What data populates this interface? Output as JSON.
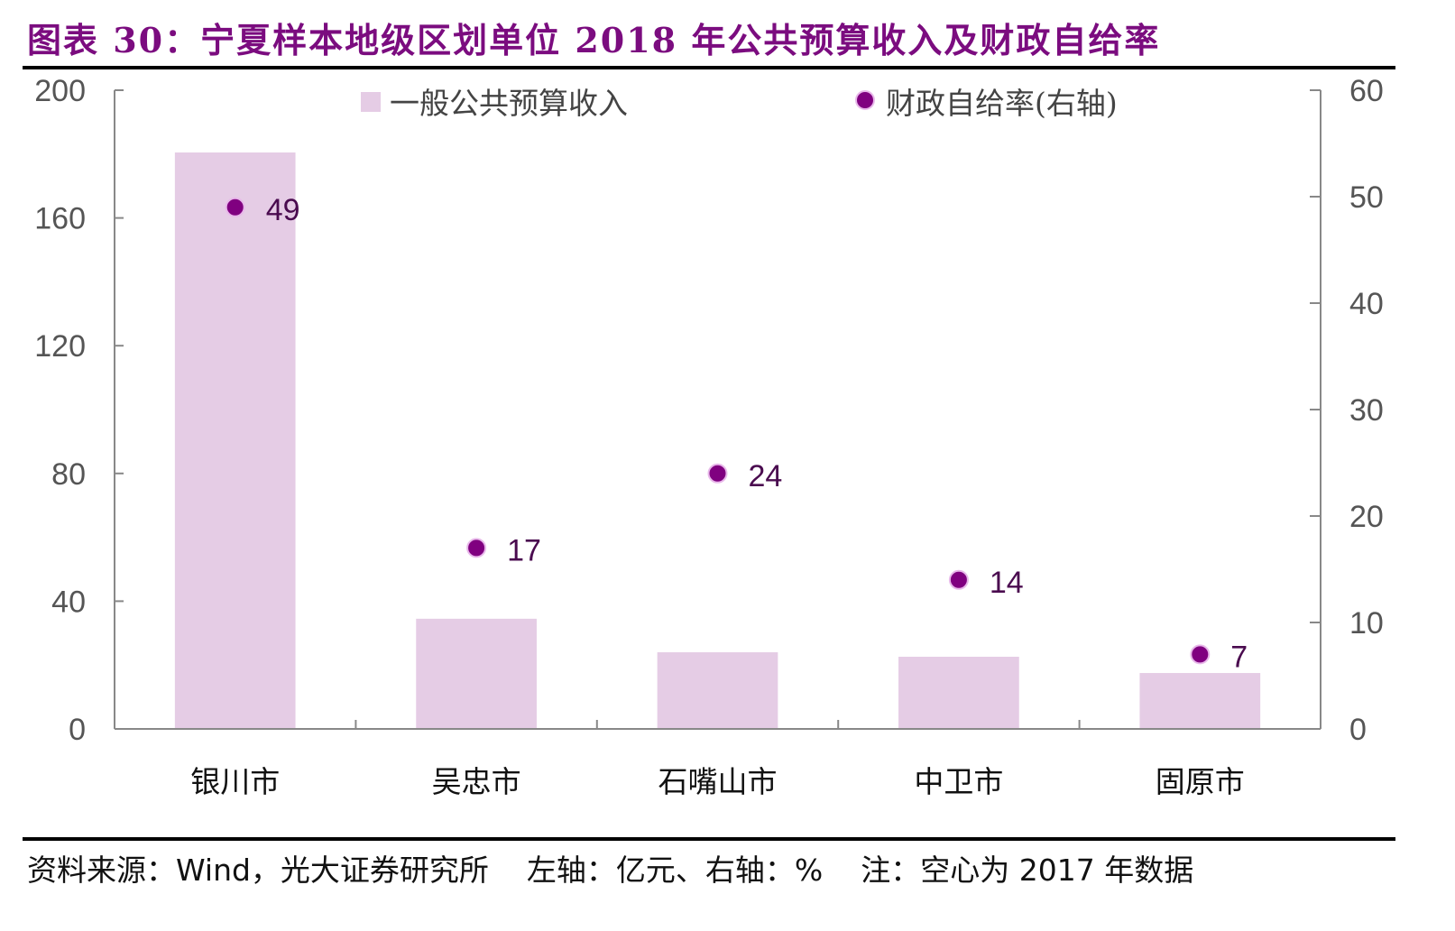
{
  "header": {
    "title": "图表 30：宁夏样本地级区划单位 2018 年公共预算收入及财政自给率"
  },
  "footer": {
    "source": "资料来源：Wind，光大证券研究所",
    "axis_note": "左轴：亿元、右轴：%",
    "note": "注：空心为 2017 年数据"
  },
  "colors": {
    "title": "#7b0c7f",
    "bar": "#e5cce5",
    "dot": "#800080",
    "dot_halo": "#e8b8ea",
    "axis": "#888888",
    "data_label": "#4a0b4f"
  },
  "chart_data": {
    "type": "bar",
    "title": "宁夏样本地级区划单位 2018 年公共预算收入及财政自给率",
    "categories": [
      "银川市",
      "吴忠市",
      "石嘴山市",
      "中卫市",
      "固原市"
    ],
    "series": [
      {
        "name": "一般公共预算收入",
        "type": "bar",
        "axis": "left",
        "values": [
          180.5,
          34.5,
          24.0,
          22.6,
          17.5
        ]
      },
      {
        "name": "财政自给率(右轴)",
        "type": "scatter",
        "axis": "right",
        "values": [
          49,
          17,
          24,
          14,
          7
        ],
        "data_labels": [
          "49",
          "17",
          "24",
          "14",
          "7"
        ]
      }
    ],
    "left_axis": {
      "label": "亿元",
      "ylim": [
        0,
        200
      ],
      "ticks": [
        0,
        40,
        80,
        120,
        160,
        200
      ]
    },
    "right_axis": {
      "label": "%",
      "ylim": [
        0,
        60
      ],
      "ticks": [
        0,
        10,
        20,
        30,
        40,
        50,
        60
      ]
    },
    "xlabel": "",
    "legend": {
      "placement": "top-center",
      "entries": [
        "一般公共预算收入",
        "财政自给率(右轴)"
      ]
    },
    "grid": false
  }
}
